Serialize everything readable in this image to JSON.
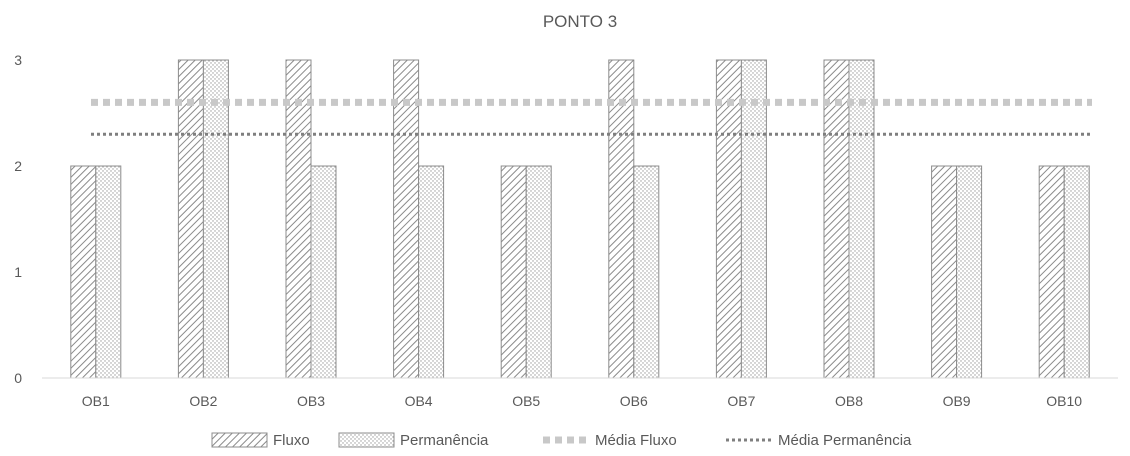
{
  "chart_data": {
    "type": "bar",
    "title": "PONTO 3",
    "categories": [
      "OB1",
      "OB2",
      "OB3",
      "OB4",
      "OB5",
      "OB6",
      "OB7",
      "OB8",
      "OB9",
      "OB10"
    ],
    "series": [
      {
        "name": "Fluxo",
        "values": [
          2,
          3,
          3,
          3,
          2,
          3,
          3,
          3,
          2,
          2
        ],
        "pattern": "diagonal-hatch"
      },
      {
        "name": "Permanência",
        "values": [
          2,
          3,
          2,
          2,
          2,
          2,
          3,
          3,
          2,
          2
        ],
        "pattern": "dots"
      }
    ],
    "reference_lines": [
      {
        "name": "Média Fluxo",
        "value": 2.6,
        "color": "#c8c8c8",
        "style": "thick-dashed"
      },
      {
        "name": "Média Permanência",
        "value": 2.3,
        "color": "#7f7f7f",
        "style": "dotted"
      }
    ],
    "ylim": [
      0,
      3
    ],
    "yticks": [
      0,
      1,
      2,
      3
    ],
    "grid": false,
    "legend_position": "bottom"
  }
}
